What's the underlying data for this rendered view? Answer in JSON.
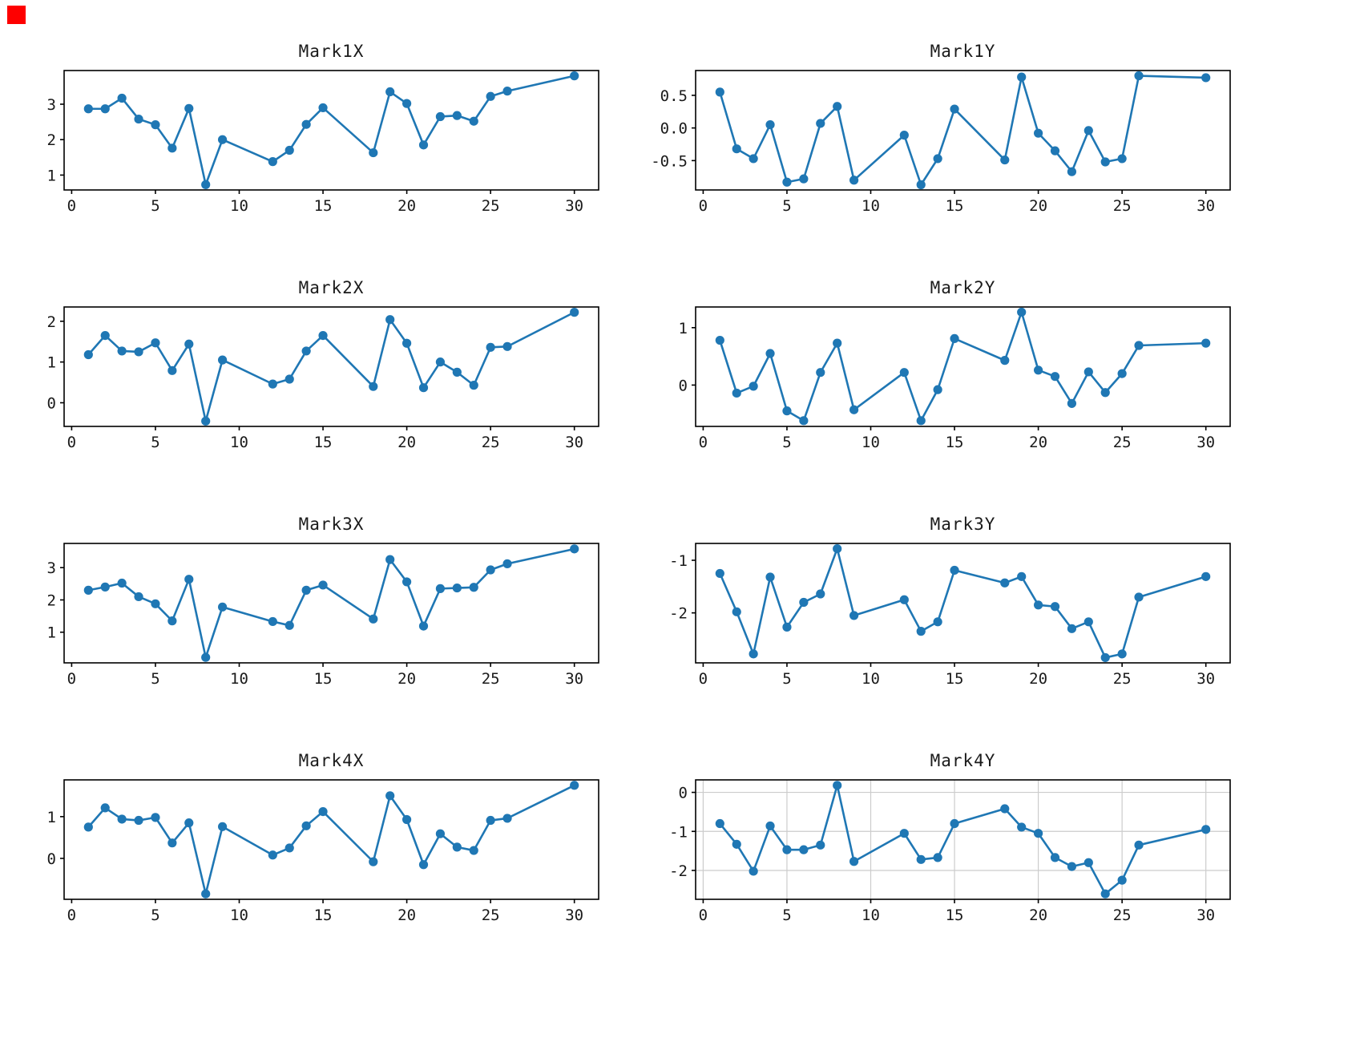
{
  "figure": {
    "background": "#ffffff",
    "line_color": "#1f77b4",
    "marker_color": "#1f77b4",
    "spine_color": "#000000",
    "tick_label_color": "#1a1a1a",
    "grid_color": "#cccccc",
    "corner_marker_color": "#fe0000"
  },
  "chart_data": [
    {
      "type": "line",
      "title": "Mark1X",
      "x": [
        1,
        2,
        3,
        4,
        5,
        6,
        7,
        8,
        9,
        12,
        13,
        14,
        15,
        18,
        19,
        20,
        21,
        22,
        23,
        24,
        25,
        26,
        30
      ],
      "values": [
        2.87,
        2.87,
        3.17,
        2.58,
        2.42,
        1.76,
        2.88,
        0.73,
        2.0,
        1.38,
        1.7,
        2.43,
        2.9,
        1.63,
        3.35,
        3.02,
        1.85,
        2.65,
        2.68,
        2.52,
        3.22,
        3.37,
        3.8
      ],
      "xlim": [
        -0.45,
        31.45
      ],
      "ylim": [
        0.58,
        3.95
      ],
      "xtick_values": [
        0,
        5,
        10,
        15,
        20,
        25,
        30
      ],
      "xtick_labels": [
        "0",
        "5",
        "10",
        "15",
        "20",
        "25",
        "30"
      ],
      "ytick_values": [
        1,
        2,
        3
      ],
      "ytick_labels": [
        "1",
        "2",
        "3"
      ],
      "grid": false,
      "legend": "none",
      "xlabel": "",
      "ylabel": ""
    },
    {
      "type": "line",
      "title": "Mark1Y",
      "x": [
        1,
        2,
        3,
        4,
        5,
        6,
        7,
        8,
        9,
        12,
        13,
        14,
        15,
        18,
        19,
        20,
        21,
        22,
        23,
        24,
        25,
        26,
        30
      ],
      "values": [
        0.55,
        -0.32,
        -0.47,
        0.05,
        -0.83,
        -0.78,
        0.07,
        0.33,
        -0.8,
        -0.11,
        -0.87,
        -0.47,
        0.29,
        -0.49,
        0.78,
        -0.08,
        -0.35,
        -0.67,
        -0.04,
        -0.52,
        -0.47,
        0.8,
        0.77
      ],
      "xlim": [
        -0.45,
        31.45
      ],
      "ylim": [
        -0.95,
        0.88
      ],
      "xtick_values": [
        0,
        5,
        10,
        15,
        20,
        25,
        30
      ],
      "xtick_labels": [
        "0",
        "5",
        "10",
        "15",
        "20",
        "25",
        "30"
      ],
      "ytick_values": [
        0.5,
        0.0,
        -0.5
      ],
      "ytick_labels": [
        "0.5",
        "0.0",
        "-0.5"
      ],
      "grid": false,
      "legend": "none",
      "xlabel": "",
      "ylabel": ""
    },
    {
      "type": "line",
      "title": "Mark2X",
      "x": [
        1,
        2,
        3,
        4,
        5,
        6,
        7,
        8,
        9,
        12,
        13,
        14,
        15,
        18,
        19,
        20,
        21,
        22,
        23,
        24,
        25,
        26,
        30
      ],
      "values": [
        1.18,
        1.65,
        1.27,
        1.25,
        1.47,
        0.79,
        1.44,
        -0.45,
        1.05,
        0.46,
        0.58,
        1.27,
        1.65,
        0.4,
        2.04,
        1.46,
        0.37,
        1.0,
        0.75,
        0.43,
        1.36,
        1.38,
        2.22
      ],
      "xlim": [
        -0.45,
        31.45
      ],
      "ylim": [
        -0.58,
        2.35
      ],
      "xtick_values": [
        0,
        5,
        10,
        15,
        20,
        25,
        30
      ],
      "xtick_labels": [
        "0",
        "5",
        "10",
        "15",
        "20",
        "25",
        "30"
      ],
      "ytick_values": [
        0,
        1,
        2
      ],
      "ytick_labels": [
        "0",
        "1",
        "2"
      ],
      "grid": false,
      "legend": "none",
      "xlabel": "",
      "ylabel": ""
    },
    {
      "type": "line",
      "title": "Mark2Y",
      "x": [
        1,
        2,
        3,
        4,
        5,
        6,
        7,
        8,
        9,
        12,
        13,
        14,
        15,
        18,
        19,
        20,
        21,
        22,
        23,
        24,
        25,
        26,
        30
      ],
      "values": [
        0.78,
        -0.14,
        -0.02,
        0.55,
        -0.45,
        -0.62,
        0.22,
        0.73,
        -0.43,
        0.22,
        -0.62,
        -0.08,
        0.81,
        0.43,
        1.27,
        0.26,
        0.15,
        -0.32,
        0.23,
        -0.13,
        0.2,
        0.69,
        0.73
      ],
      "xlim": [
        -0.45,
        31.45
      ],
      "ylim": [
        -0.72,
        1.36
      ],
      "xtick_values": [
        0,
        5,
        10,
        15,
        20,
        25,
        30
      ],
      "xtick_labels": [
        "0",
        "5",
        "10",
        "15",
        "20",
        "25",
        "30"
      ],
      "ytick_values": [
        0,
        1
      ],
      "ytick_labels": [
        "0",
        "1"
      ],
      "grid": false,
      "legend": "none",
      "xlabel": "",
      "ylabel": ""
    },
    {
      "type": "line",
      "title": "Mark3X",
      "x": [
        1,
        2,
        3,
        4,
        5,
        6,
        7,
        8,
        9,
        12,
        13,
        14,
        15,
        18,
        19,
        20,
        21,
        22,
        23,
        24,
        25,
        26,
        30
      ],
      "values": [
        2.3,
        2.4,
        2.52,
        2.1,
        1.88,
        1.35,
        2.64,
        0.22,
        1.78,
        1.33,
        1.21,
        2.3,
        2.46,
        1.41,
        3.25,
        2.56,
        1.19,
        2.35,
        2.37,
        2.39,
        2.93,
        3.12,
        3.58
      ],
      "xlim": [
        -0.45,
        31.45
      ],
      "ylim": [
        0.05,
        3.75
      ],
      "xtick_values": [
        0,
        5,
        10,
        15,
        20,
        25,
        30
      ],
      "xtick_labels": [
        "0",
        "5",
        "10",
        "15",
        "20",
        "25",
        "30"
      ],
      "ytick_values": [
        1,
        2,
        3
      ],
      "ytick_labels": [
        "1",
        "2",
        "3"
      ],
      "grid": false,
      "legend": "none",
      "xlabel": "",
      "ylabel": ""
    },
    {
      "type": "line",
      "title": "Mark3Y",
      "x": [
        1,
        2,
        3,
        4,
        5,
        6,
        7,
        8,
        9,
        12,
        13,
        14,
        15,
        18,
        19,
        20,
        21,
        22,
        23,
        24,
        25,
        26,
        30
      ],
      "values": [
        -1.25,
        -1.98,
        -2.78,
        -1.32,
        -2.27,
        -1.8,
        -1.64,
        -0.78,
        -2.05,
        -1.75,
        -2.35,
        -2.17,
        -1.19,
        -1.43,
        -1.31,
        -1.85,
        -1.88,
        -2.3,
        -2.17,
        -2.85,
        -2.78,
        -1.7,
        -1.31
      ],
      "xlim": [
        -0.45,
        31.45
      ],
      "ylim": [
        -2.95,
        -0.68
      ],
      "xtick_values": [
        0,
        5,
        10,
        15,
        20,
        25,
        30
      ],
      "xtick_labels": [
        "0",
        "5",
        "10",
        "15",
        "20",
        "25",
        "30"
      ],
      "ytick_values": [
        -1,
        -2
      ],
      "ytick_labels": [
        "-1",
        "-2"
      ],
      "grid": false,
      "legend": "none",
      "xlabel": "",
      "ylabel": ""
    },
    {
      "type": "line",
      "title": "Mark4X",
      "x": [
        1,
        2,
        3,
        4,
        5,
        6,
        7,
        8,
        9,
        12,
        13,
        14,
        15,
        18,
        19,
        20,
        21,
        22,
        23,
        24,
        25,
        26,
        30
      ],
      "values": [
        0.75,
        1.21,
        0.94,
        0.91,
        0.98,
        0.37,
        0.85,
        -0.85,
        0.76,
        0.08,
        0.25,
        0.78,
        1.12,
        -0.08,
        1.5,
        0.93,
        -0.15,
        0.59,
        0.27,
        0.19,
        0.91,
        0.96,
        1.75
      ],
      "xlim": [
        -0.45,
        31.45
      ],
      "ylim": [
        -0.98,
        1.88
      ],
      "xtick_values": [
        0,
        5,
        10,
        15,
        20,
        25,
        30
      ],
      "xtick_labels": [
        "0",
        "5",
        "10",
        "15",
        "20",
        "25",
        "30"
      ],
      "ytick_values": [
        0,
        1
      ],
      "ytick_labels": [
        "0",
        "1"
      ],
      "grid": false,
      "legend": "none",
      "xlabel": "",
      "ylabel": ""
    },
    {
      "type": "line",
      "title": "Mark4Y",
      "x": [
        1,
        2,
        3,
        4,
        5,
        6,
        7,
        8,
        9,
        12,
        13,
        14,
        15,
        18,
        19,
        20,
        21,
        22,
        23,
        24,
        25,
        26,
        30
      ],
      "values": [
        -0.8,
        -1.33,
        -2.02,
        -0.86,
        -1.47,
        -1.47,
        -1.35,
        0.18,
        -1.77,
        -1.05,
        -1.72,
        -1.67,
        -0.8,
        -0.42,
        -0.89,
        -1.05,
        -1.67,
        -1.9,
        -1.8,
        -2.6,
        -2.25,
        -1.35,
        -0.95
      ],
      "xlim": [
        -0.45,
        31.45
      ],
      "ylim": [
        -2.74,
        0.32
      ],
      "xtick_values": [
        0,
        5,
        10,
        15,
        20,
        25,
        30
      ],
      "xtick_labels": [
        "0",
        "5",
        "10",
        "15",
        "20",
        "25",
        "30"
      ],
      "ytick_values": [
        0,
        -1,
        -2
      ],
      "ytick_labels": [
        "0",
        "-1",
        "-2"
      ],
      "grid": true,
      "legend": "none",
      "xlabel": "",
      "ylabel": ""
    }
  ]
}
